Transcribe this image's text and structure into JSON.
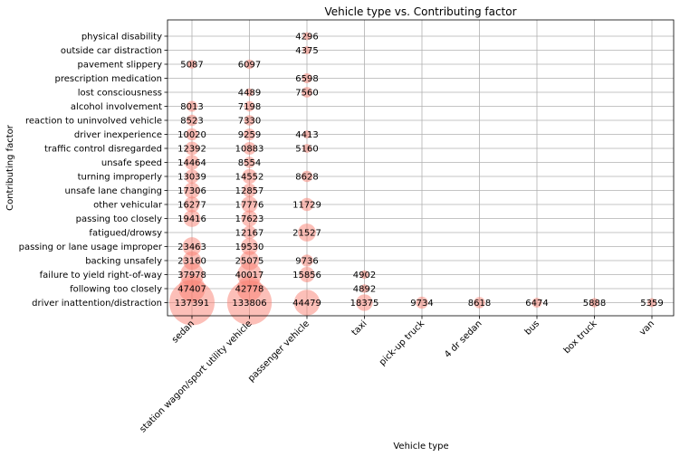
{
  "chart_data": {
    "type": "scatter",
    "title": "Vehicle type vs. Contributing factor",
    "xlabel": "Vehicle type",
    "ylabel": "Contributing factor",
    "grid": true,
    "bubble_color": "#fa8072",
    "x_categories": [
      "sedan",
      "station wagon/sport utility vehicle",
      "passenger vehicle",
      "taxi",
      "pick-up truck",
      "4 dr sedan",
      "bus",
      "box truck",
      "van"
    ],
    "y_categories": [
      "driver inattention/distraction",
      "following too closely",
      "failure to yield right-of-way",
      "backing unsafely",
      "passing or lane usage improper",
      "fatigued/drowsy",
      "passing too closely",
      "other vehicular",
      "unsafe lane changing",
      "turning improperly",
      "unsafe speed",
      "traffic control disregarded",
      "driver inexperience",
      "reaction to uninvolved vehicle",
      "alcohol involvement",
      "lost consciousness",
      "prescription medication",
      "pavement slippery",
      "outside car distraction",
      "physical disability"
    ],
    "points": [
      {
        "x": "sedan",
        "y": "driver inattention/distraction",
        "value": 137391
      },
      {
        "x": "station wagon/sport utility vehicle",
        "y": "driver inattention/distraction",
        "value": 133806
      },
      {
        "x": "passenger vehicle",
        "y": "driver inattention/distraction",
        "value": 44479
      },
      {
        "x": "taxi",
        "y": "driver inattention/distraction",
        "value": 18375
      },
      {
        "x": "pick-up truck",
        "y": "driver inattention/distraction",
        "value": 9734
      },
      {
        "x": "4 dr sedan",
        "y": "driver inattention/distraction",
        "value": 8618
      },
      {
        "x": "bus",
        "y": "driver inattention/distraction",
        "value": 6474
      },
      {
        "x": "box truck",
        "y": "driver inattention/distraction",
        "value": 5888
      },
      {
        "x": "van",
        "y": "driver inattention/distraction",
        "value": 5359
      },
      {
        "x": "sedan",
        "y": "following too closely",
        "value": 47407
      },
      {
        "x": "station wagon/sport utility vehicle",
        "y": "following too closely",
        "value": 42778
      },
      {
        "x": "taxi",
        "y": "following too closely",
        "value": 4892
      },
      {
        "x": "sedan",
        "y": "failure to yield right-of-way",
        "value": 37978
      },
      {
        "x": "station wagon/sport utility vehicle",
        "y": "failure to yield right-of-way",
        "value": 40017
      },
      {
        "x": "passenger vehicle",
        "y": "failure to yield right-of-way",
        "value": 15856
      },
      {
        "x": "taxi",
        "y": "failure to yield right-of-way",
        "value": 4902
      },
      {
        "x": "sedan",
        "y": "backing unsafely",
        "value": 23160
      },
      {
        "x": "station wagon/sport utility vehicle",
        "y": "backing unsafely",
        "value": 25075
      },
      {
        "x": "passenger vehicle",
        "y": "backing unsafely",
        "value": 9736
      },
      {
        "x": "sedan",
        "y": "passing or lane usage improper",
        "value": 23463
      },
      {
        "x": "station wagon/sport utility vehicle",
        "y": "passing or lane usage improper",
        "value": 19530
      },
      {
        "x": "station wagon/sport utility vehicle",
        "y": "fatigued/drowsy",
        "value": 12167
      },
      {
        "x": "passenger vehicle",
        "y": "fatigued/drowsy",
        "value": 21527
      },
      {
        "x": "sedan",
        "y": "passing too closely",
        "value": 19416
      },
      {
        "x": "station wagon/sport utility vehicle",
        "y": "passing too closely",
        "value": 17623
      },
      {
        "x": "sedan",
        "y": "other vehicular",
        "value": 16277
      },
      {
        "x": "station wagon/sport utility vehicle",
        "y": "other vehicular",
        "value": 17776
      },
      {
        "x": "passenger vehicle",
        "y": "other vehicular",
        "value": 11729
      },
      {
        "x": "sedan",
        "y": "unsafe lane changing",
        "value": 17306
      },
      {
        "x": "station wagon/sport utility vehicle",
        "y": "unsafe lane changing",
        "value": 12857
      },
      {
        "x": "sedan",
        "y": "turning improperly",
        "value": 13039
      },
      {
        "x": "station wagon/sport utility vehicle",
        "y": "turning improperly",
        "value": 14552
      },
      {
        "x": "passenger vehicle",
        "y": "turning improperly",
        "value": 8628
      },
      {
        "x": "sedan",
        "y": "unsafe speed",
        "value": 14464
      },
      {
        "x": "station wagon/sport utility vehicle",
        "y": "unsafe speed",
        "value": 8554
      },
      {
        "x": "sedan",
        "y": "traffic control disregarded",
        "value": 12392
      },
      {
        "x": "station wagon/sport utility vehicle",
        "y": "traffic control disregarded",
        "value": 10883
      },
      {
        "x": "passenger vehicle",
        "y": "traffic control disregarded",
        "value": 5160
      },
      {
        "x": "sedan",
        "y": "driver inexperience",
        "value": 10020
      },
      {
        "x": "station wagon/sport utility vehicle",
        "y": "driver inexperience",
        "value": 9259
      },
      {
        "x": "passenger vehicle",
        "y": "driver inexperience",
        "value": 4413
      },
      {
        "x": "sedan",
        "y": "reaction to uninvolved vehicle",
        "value": 8523
      },
      {
        "x": "station wagon/sport utility vehicle",
        "y": "reaction to uninvolved vehicle",
        "value": 7330
      },
      {
        "x": "sedan",
        "y": "alcohol involvement",
        "value": 8013
      },
      {
        "x": "station wagon/sport utility vehicle",
        "y": "alcohol involvement",
        "value": 7198
      },
      {
        "x": "station wagon/sport utility vehicle",
        "y": "lost consciousness",
        "value": 4489
      },
      {
        "x": "passenger vehicle",
        "y": "lost consciousness",
        "value": 7560
      },
      {
        "x": "passenger vehicle",
        "y": "prescription medication",
        "value": 6598
      },
      {
        "x": "sedan",
        "y": "pavement slippery",
        "value": 5087
      },
      {
        "x": "station wagon/sport utility vehicle",
        "y": "pavement slippery",
        "value": 6097
      },
      {
        "x": "passenger vehicle",
        "y": "outside car distraction",
        "value": 4375
      },
      {
        "x": "passenger vehicle",
        "y": "physical disability",
        "value": 4296
      }
    ]
  }
}
